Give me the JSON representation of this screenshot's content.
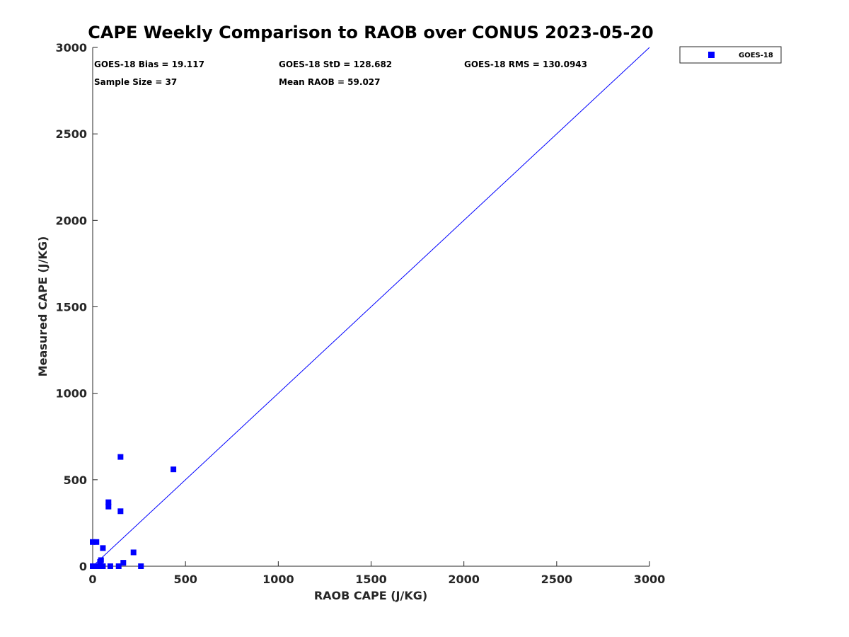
{
  "chart_data": {
    "type": "scatter",
    "title": "CAPE Weekly Comparison to RAOB over CONUS 2023-05-20",
    "xlabel": "RAOB CAPE (J/KG)",
    "ylabel": "Measured CAPE (J/KG)",
    "xlim": [
      0,
      3000
    ],
    "ylim": [
      0,
      3000
    ],
    "xticks": [
      "0",
      "500",
      "1000",
      "1500",
      "2000",
      "2500",
      "3000"
    ],
    "yticks": [
      "0",
      "500",
      "1000",
      "1500",
      "2000",
      "2500",
      "3000"
    ],
    "grid": false,
    "legend_position": "outside-top-right",
    "reference_line": {
      "from": [
        0,
        0
      ],
      "to": [
        3000,
        3000
      ],
      "color": "#0000ff"
    },
    "series": [
      {
        "name": "GOES-18",
        "color": "#0000ff",
        "marker": "square",
        "points": [
          [
            0,
            0
          ],
          [
            5,
            0
          ],
          [
            15,
            0
          ],
          [
            25,
            0
          ],
          [
            35,
            0
          ],
          [
            45,
            0
          ],
          [
            55,
            0
          ],
          [
            95,
            0
          ],
          [
            140,
            0
          ],
          [
            260,
            0
          ],
          [
            40,
            10
          ],
          [
            40,
            25
          ],
          [
            45,
            35
          ],
          [
            165,
            20
          ],
          [
            0,
            140
          ],
          [
            20,
            140
          ],
          [
            55,
            105
          ],
          [
            220,
            80
          ],
          [
            85,
            345
          ],
          [
            85,
            370
          ],
          [
            150,
            318
          ],
          [
            150,
            632
          ],
          [
            435,
            560
          ]
        ]
      }
    ],
    "stats": {
      "bias": "GOES-18 Bias = 19.117",
      "std": "GOES-18 StD = 128.682",
      "rms": "GOES-18 RMS = 130.0943",
      "sample": "Sample Size = 37",
      "mean": "Mean RAOB = 59.027"
    }
  }
}
